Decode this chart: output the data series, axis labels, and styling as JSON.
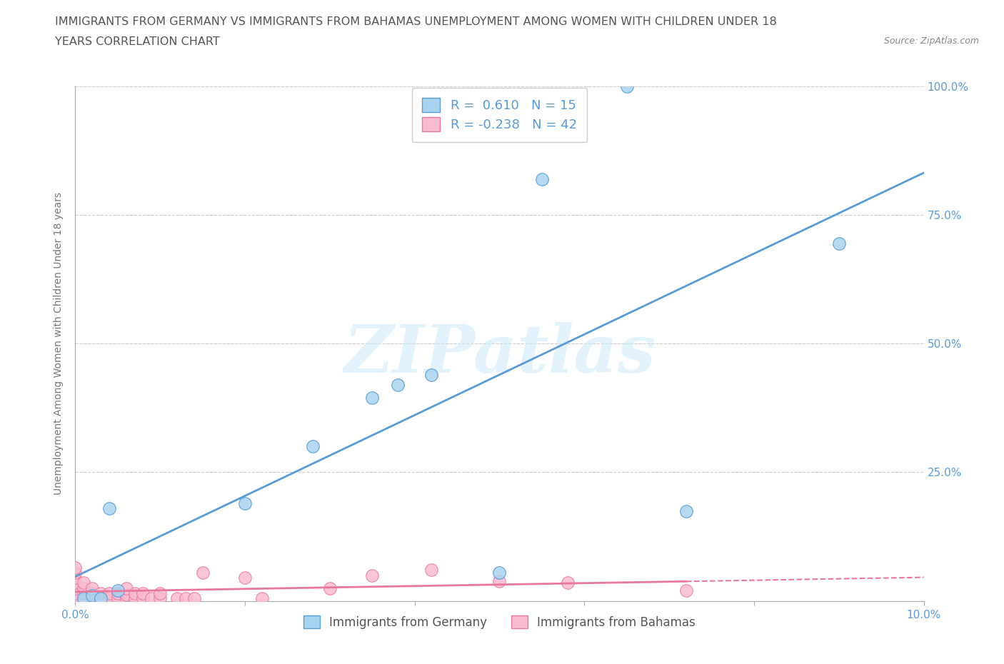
{
  "title_line1": "IMMIGRANTS FROM GERMANY VS IMMIGRANTS FROM BAHAMAS UNEMPLOYMENT AMONG WOMEN WITH CHILDREN UNDER 18",
  "title_line2": "YEARS CORRELATION CHART",
  "source": "Source: ZipAtlas.com",
  "ylabel": "Unemployment Among Women with Children Under 18 years",
  "legend_label1": "Immigrants from Germany",
  "legend_label2": "Immigrants from Bahamas",
  "R1": 0.61,
  "N1": 15,
  "R2": -0.238,
  "N2": 42,
  "color_germany": "#a8d4f0",
  "color_bahamas": "#f8bbd0",
  "color_germany_dark": "#5b9bd5",
  "color_bahamas_dark": "#e8789a",
  "xlim": [
    0.0,
    0.1
  ],
  "ylim": [
    0.0,
    1.0
  ],
  "xticks": [
    0.0,
    0.02,
    0.04,
    0.06,
    0.08,
    0.1
  ],
  "yticks": [
    0.0,
    0.25,
    0.5,
    0.75,
    1.0
  ],
  "xtick_labels": [
    "0.0%",
    "",
    "",
    "",
    "",
    "10.0%"
  ],
  "ytick_labels_right": [
    "",
    "25.0%",
    "50.0%",
    "75.0%",
    "100.0%"
  ],
  "germany_x": [
    0.001,
    0.002,
    0.003,
    0.004,
    0.005,
    0.02,
    0.028,
    0.035,
    0.038,
    0.042,
    0.05,
    0.055,
    0.065,
    0.072,
    0.09
  ],
  "germany_y": [
    0.005,
    0.01,
    0.005,
    0.18,
    0.02,
    0.19,
    0.3,
    0.395,
    0.42,
    0.44,
    0.055,
    0.82,
    1.0,
    0.175,
    0.695
  ],
  "bahamas_x": [
    0.0,
    0.0,
    0.0,
    0.0,
    0.0,
    0.0,
    0.0,
    0.001,
    0.001,
    0.001,
    0.001,
    0.002,
    0.002,
    0.002,
    0.003,
    0.003,
    0.004,
    0.004,
    0.005,
    0.005,
    0.006,
    0.006,
    0.006,
    0.007,
    0.007,
    0.008,
    0.008,
    0.009,
    0.01,
    0.01,
    0.012,
    0.013,
    0.014,
    0.015,
    0.02,
    0.022,
    0.03,
    0.035,
    0.042,
    0.05,
    0.058,
    0.072
  ],
  "bahamas_y": [
    0.005,
    0.015,
    0.025,
    0.035,
    0.045,
    0.055,
    0.065,
    0.005,
    0.015,
    0.025,
    0.035,
    0.005,
    0.015,
    0.025,
    0.005,
    0.015,
    0.005,
    0.015,
    0.005,
    0.015,
    0.005,
    0.012,
    0.025,
    0.005,
    0.015,
    0.005,
    0.015,
    0.005,
    0.005,
    0.015,
    0.005,
    0.005,
    0.005,
    0.055,
    0.045,
    0.005,
    0.025,
    0.05,
    0.06,
    0.038,
    0.035,
    0.02
  ],
  "watermark_text": "ZIPatlas",
  "background_color": "#ffffff",
  "grid_color": "#cccccc",
  "title_color": "#555555",
  "tick_color": "#5b9bd5",
  "source_color": "#888888"
}
